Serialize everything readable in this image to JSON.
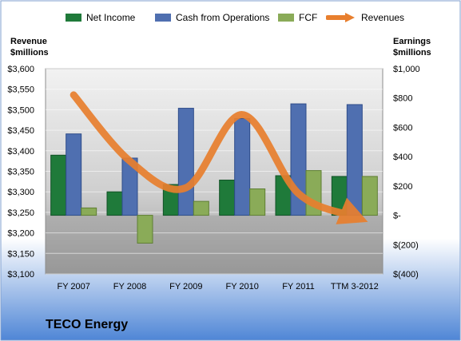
{
  "legend": {
    "net_income": "Net Income",
    "cash_from_operations": "Cash from Operations",
    "fcf": "FCF",
    "revenues": "Revenues"
  },
  "axis_titles": {
    "left_line1": "Revenue",
    "left_line2": "$millions",
    "right_line1": "Earnings",
    "right_line2": "$millions"
  },
  "company": "TECO Energy",
  "colors": {
    "net_income": "#1f7a3a",
    "cash_from_operations": "#4f6fb0",
    "fcf": "#8aab58",
    "revenues": "#e87f2e",
    "background_top": "#4f86d6",
    "background_bottom": "#ffffff"
  },
  "chart_data": {
    "type": "bar",
    "categories": [
      "FY 2007",
      "FY 2008",
      "FY 2009",
      "FY 2010",
      "FY 2011",
      "TTM 3-2012"
    ],
    "left_axis": {
      "label": "Revenue $millions",
      "ylim": [
        3100,
        3600
      ],
      "ticks": [
        3600,
        3550,
        3500,
        3450,
        3400,
        3350,
        3300,
        3250,
        3200,
        3150,
        3100
      ],
      "tick_labels": [
        "$3,600",
        "$3,550",
        "$3,500",
        "$3,450",
        "$3,400",
        "$3,350",
        "$3,300",
        "$3,250",
        "$3,200",
        "$3,150",
        "$3,100"
      ]
    },
    "right_axis": {
      "label": "Earnings $millions",
      "ylim": [
        -400,
        1000
      ],
      "ticks": [
        1000,
        800,
        600,
        400,
        200,
        0,
        -200,
        -400
      ],
      "tick_labels": [
        "$1,000",
        "$800",
        "$600",
        "$400",
        "$200",
        "$-",
        "$(200)",
        "$(400)"
      ]
    },
    "series": [
      {
        "name": "Net Income",
        "axis": "right",
        "type": "bar",
        "values": [
          410,
          160,
          210,
          240,
          270,
          265
        ]
      },
      {
        "name": "Cash from Operations",
        "axis": "right",
        "type": "bar",
        "values": [
          555,
          390,
          730,
          660,
          760,
          755
        ]
      },
      {
        "name": "FCF",
        "axis": "right",
        "type": "bar",
        "values": [
          50,
          -190,
          95,
          180,
          305,
          265
        ]
      },
      {
        "name": "Revenues",
        "axis": "left",
        "type": "line",
        "values": [
          3536,
          3375,
          3310,
          3488,
          3296,
          3240
        ]
      }
    ],
    "grid": true,
    "legend_position": "top"
  }
}
